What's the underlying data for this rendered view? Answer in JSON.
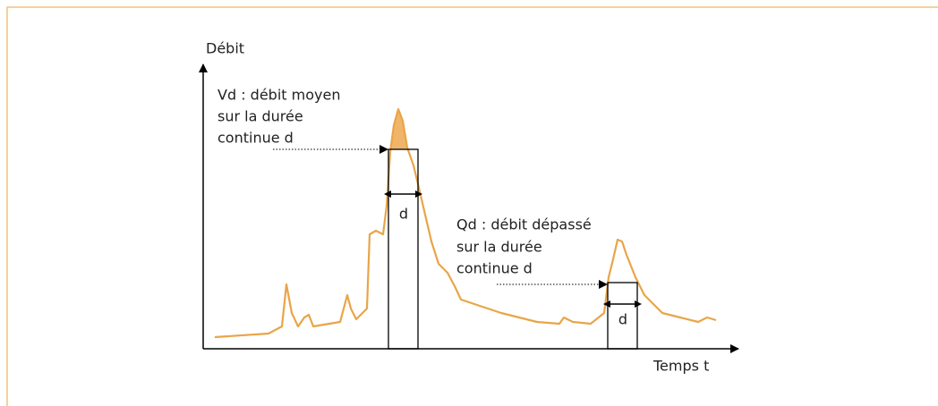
{
  "axes": {
    "y_label": "Débit",
    "x_label": "Temps t"
  },
  "annotations": [
    {
      "lines": [
        "Vd : débit moyen",
        "sur la durée",
        "continue d"
      ],
      "duration_label": "d"
    },
    {
      "lines": [
        "Qd : débit dépassé",
        "sur la durée",
        "continue d"
      ],
      "duration_label": "d"
    }
  ]
}
